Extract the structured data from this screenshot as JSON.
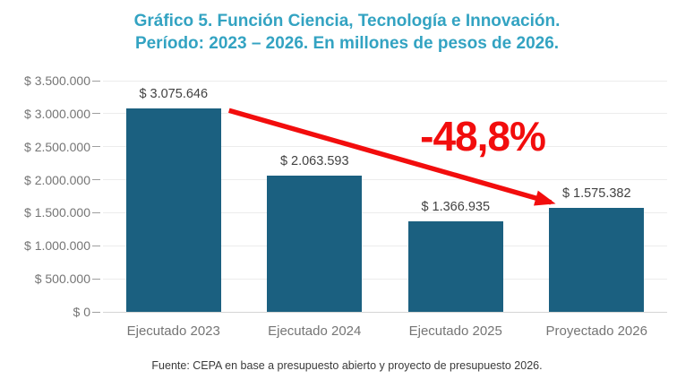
{
  "title": {
    "line1": "Gráfico 5. Función Ciencia, Tecnología e Innovación.",
    "line2": "Período: 2023 – 2026. En millones de pesos de 2026."
  },
  "annotation": {
    "text": "-48,8%"
  },
  "footer": {
    "source": "Fuente: CEPA en base a presupuesto abierto y proyecto de presupuesto 2026."
  },
  "colors": {
    "title": "#33A3C2",
    "bar": "#1B6080",
    "arrow": "#F20D0D",
    "annotation": "#F20D0D",
    "axis_label": "#757575",
    "data_label": "#424242",
    "gridline": "#ECECEC",
    "baseline": "#D5D5D5",
    "tick": "#9E9E9E"
  },
  "chart_data": {
    "type": "bar",
    "title": "Gráfico 5. Función Ciencia, Tecnología e Innovación. Período: 2023 – 2026. En millones de pesos de 2026.",
    "categories": [
      "Ejecutado 2023",
      "Ejecutado 2024",
      "Ejecutado 2025",
      "Proyectado 2026"
    ],
    "values": [
      3075646,
      2063593,
      1366935,
      1575382
    ],
    "bar_labels": [
      "$ 3.075.646",
      "$ 2.063.593",
      "$ 1.366.935",
      "$ 1.575.382"
    ],
    "unit": "millones de pesos de 2026",
    "xlabel": "",
    "ylabel": "",
    "ylim": [
      0,
      3500000
    ],
    "yticks": [
      {
        "value": 0,
        "label": "$ 0"
      },
      {
        "value": 500000,
        "label": "$ 500.000"
      },
      {
        "value": 1000000,
        "label": "$ 1.000.000"
      },
      {
        "value": 1500000,
        "label": "$ 1.500.000"
      },
      {
        "value": 2000000,
        "label": "$ 2.000.000"
      },
      {
        "value": 2500000,
        "label": "$ 2.500.000"
      },
      {
        "value": 3000000,
        "label": "$ 3.000.000"
      },
      {
        "value": 3500000,
        "label": "$ 3.500.000"
      }
    ],
    "grid": true,
    "legend": false,
    "annotation": {
      "text": "-48,8%",
      "from_category": "Ejecutado 2023",
      "to_category": "Proyectado 2026"
    },
    "source_note": "Fuente: CEPA en base a presupuesto abierto y proyecto de presupuesto 2026."
  }
}
